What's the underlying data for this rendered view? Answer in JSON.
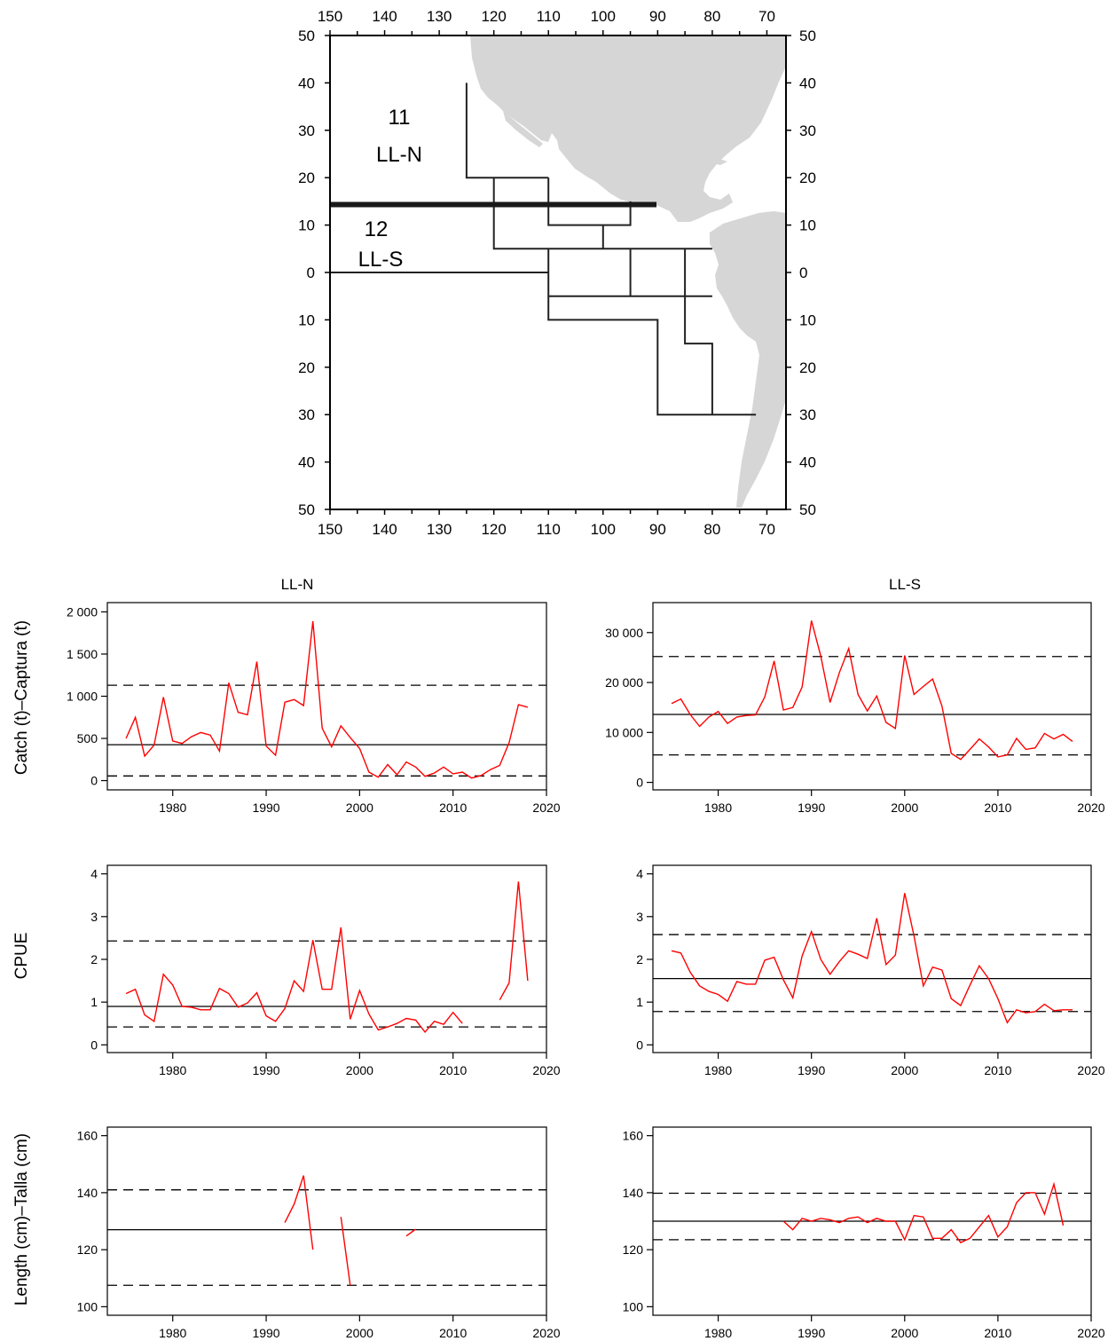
{
  "map": {
    "lon_ticks": [
      150,
      140,
      130,
      120,
      110,
      100,
      90,
      80,
      70
    ],
    "lat_ticks": [
      50,
      40,
      30,
      20,
      10,
      0,
      10,
      20,
      30,
      40,
      50
    ],
    "lon_range": [
      150,
      66.5
    ],
    "lat_range": [
      50,
      -50
    ],
    "land_color": "#d6d6d6",
    "areas": [
      {
        "number": "11",
        "name": "LL-N"
      },
      {
        "number": "12",
        "name": "LL-S"
      }
    ],
    "boundary_lat": 15,
    "grid_lines": [
      [
        [
          125,
          40
        ],
        [
          125,
          20
        ],
        [
          110,
          20
        ]
      ],
      [
        [
          120,
          20
        ],
        [
          120,
          5
        ],
        [
          80,
          5
        ]
      ],
      [
        [
          110,
          20
        ],
        [
          110,
          10
        ],
        [
          95,
          10
        ],
        [
          95,
          15
        ]
      ],
      [
        [
          100,
          10
        ],
        [
          100,
          5
        ]
      ],
      [
        [
          150,
          0
        ],
        [
          110,
          0
        ]
      ],
      [
        [
          110,
          5
        ],
        [
          110,
          -10
        ],
        [
          90,
          -10
        ],
        [
          90,
          -30
        ],
        [
          72,
          -30
        ]
      ],
      [
        [
          110,
          -5
        ],
        [
          80,
          -5
        ]
      ],
      [
        [
          95,
          5
        ],
        [
          95,
          -5
        ]
      ],
      [
        [
          85,
          5
        ],
        [
          85,
          -15
        ],
        [
          80,
          -15
        ],
        [
          80,
          -30
        ]
      ]
    ]
  },
  "panel_titles": {
    "left": "LL-N",
    "right": "LL-S"
  },
  "row_labels": [
    "Catch (t)–Captura (t)",
    "CPUE",
    "Length (cm)–Talla (cm)"
  ],
  "x_ticks": [
    "1980",
    "1990",
    "2000",
    "2010",
    "2020"
  ],
  "colors": {
    "series": "#ff0000",
    "lines": "#000000"
  },
  "chart_data": [
    {
      "type": "line",
      "panel": "LL-N",
      "row": "catch",
      "xlim": [
        1973,
        2020
      ],
      "ylim": [
        -110,
        2110
      ],
      "yticks": [
        0,
        500,
        1000,
        1500,
        2000
      ],
      "ytick_labels": [
        "0",
        "500",
        "1 000",
        "1 500",
        "2 000"
      ],
      "x": [
        1975,
        1976,
        1977,
        1978,
        1979,
        1980,
        1981,
        1982,
        1983,
        1984,
        1985,
        1986,
        1987,
        1988,
        1989,
        1990,
        1991,
        1992,
        1993,
        1994,
        1995,
        1996,
        1997,
        1998,
        1999,
        2000,
        2001,
        2002,
        2003,
        2004,
        2005,
        2006,
        2007,
        2008,
        2009,
        2010,
        2011,
        2012,
        2013,
        2014,
        2015,
        2016,
        2017,
        2018
      ],
      "y": [
        500,
        750,
        290,
        420,
        990,
        470,
        440,
        520,
        570,
        540,
        350,
        1160,
        810,
        780,
        1410,
        410,
        300,
        930,
        960,
        890,
        1890,
        620,
        400,
        650,
        510,
        380,
        100,
        40,
        190,
        70,
        220,
        160,
        50,
        90,
        160,
        80,
        100,
        30,
        60,
        130,
        180,
        450,
        900,
        870
      ],
      "hlines": [
        {
          "value": 425,
          "style": "solid"
        },
        {
          "value": 1130,
          "style": "dashed"
        },
        {
          "value": 55,
          "style": "dashed"
        }
      ]
    },
    {
      "type": "line",
      "panel": "LL-S",
      "row": "catch",
      "xlim": [
        1973,
        2020
      ],
      "ylim": [
        -1500,
        36000
      ],
      "yticks": [
        0,
        10000,
        20000,
        30000
      ],
      "ytick_labels": [
        "0",
        "10 000",
        "20 000",
        "30 000"
      ],
      "x": [
        1975,
        1976,
        1977,
        1978,
        1979,
        1980,
        1981,
        1982,
        1983,
        1984,
        1985,
        1986,
        1987,
        1988,
        1989,
        1990,
        1991,
        1992,
        1993,
        1994,
        1995,
        1996,
        1997,
        1998,
        1999,
        2000,
        2001,
        2002,
        2003,
        2004,
        2005,
        2006,
        2007,
        2008,
        2009,
        2010,
        2011,
        2012,
        2013,
        2014,
        2015,
        2016,
        2017,
        2018
      ],
      "y": [
        15800,
        16700,
        13600,
        11200,
        13100,
        14200,
        11800,
        13100,
        13400,
        13500,
        17100,
        24300,
        14500,
        15000,
        19100,
        32400,
        25300,
        16000,
        22000,
        26800,
        17600,
        14300,
        17300,
        12000,
        10800,
        25400,
        17600,
        19200,
        20700,
        15300,
        5800,
        4600,
        6600,
        8700,
        7100,
        5100,
        5500,
        8800,
        6600,
        6900,
        9800,
        8700,
        9600,
        8200
      ],
      "hlines": [
        {
          "value": 13600,
          "style": "solid"
        },
        {
          "value": 25200,
          "style": "dashed"
        },
        {
          "value": 5500,
          "style": "dashed"
        }
      ]
    },
    {
      "type": "line",
      "panel": "LL-N",
      "row": "cpue",
      "xlim": [
        1973,
        2020
      ],
      "ylim": [
        -0.18,
        4.2
      ],
      "yticks": [
        0,
        1,
        2,
        3,
        4
      ],
      "ytick_labels": [
        "0",
        "1",
        "2",
        "3",
        "4"
      ],
      "segments": [
        {
          "x": [
            1975,
            1976,
            1977,
            1978,
            1979,
            1980,
            1981,
            1982,
            1983,
            1984,
            1985,
            1986,
            1987,
            1988,
            1989,
            1990,
            1991,
            1992,
            1993,
            1994,
            1995,
            1996,
            1997,
            1998,
            1999,
            2000,
            2001,
            2002,
            2003,
            2004,
            2005,
            2006,
            2007,
            2008,
            2009,
            2010,
            2011
          ],
          "y": [
            1.2,
            1.3,
            0.7,
            0.55,
            1.65,
            1.4,
            0.9,
            0.88,
            0.82,
            0.82,
            1.32,
            1.2,
            0.88,
            0.98,
            1.22,
            0.68,
            0.55,
            0.85,
            1.5,
            1.25,
            2.45,
            1.3,
            1.3,
            2.75,
            0.6,
            1.27,
            0.72,
            0.35,
            0.42,
            0.5,
            0.62,
            0.58,
            0.3,
            0.55,
            0.48,
            0.76,
            0.5
          ]
        },
        {
          "x": [
            2015,
            2016,
            2017,
            2018
          ],
          "y": [
            1.05,
            1.45,
            3.82,
            1.5
          ]
        }
      ],
      "hlines": [
        {
          "value": 0.9,
          "style": "solid"
        },
        {
          "value": 2.43,
          "style": "dashed"
        },
        {
          "value": 0.42,
          "style": "dashed"
        }
      ]
    },
    {
      "type": "line",
      "panel": "LL-S",
      "row": "cpue",
      "xlim": [
        1973,
        2020
      ],
      "ylim": [
        -0.18,
        4.2
      ],
      "yticks": [
        0,
        1,
        2,
        3,
        4
      ],
      "ytick_labels": [
        "0",
        "1",
        "2",
        "3",
        "4"
      ],
      "x": [
        1975,
        1976,
        1977,
        1978,
        1979,
        1980,
        1981,
        1982,
        1983,
        1984,
        1985,
        1986,
        1987,
        1988,
        1989,
        1990,
        1991,
        1992,
        1993,
        1994,
        1995,
        1996,
        1997,
        1998,
        1999,
        2000,
        2001,
        2002,
        2003,
        2004,
        2005,
        2006,
        2007,
        2008,
        2009,
        2010,
        2011,
        2012,
        2013,
        2014,
        2015,
        2016,
        2017,
        2018
      ],
      "y": [
        2.2,
        2.15,
        1.7,
        1.38,
        1.25,
        1.18,
        1.02,
        1.48,
        1.42,
        1.42,
        1.98,
        2.05,
        1.52,
        1.1,
        2.08,
        2.65,
        2.0,
        1.65,
        1.95,
        2.2,
        2.12,
        2.02,
        2.96,
        1.88,
        2.1,
        3.55,
        2.55,
        1.38,
        1.82,
        1.75,
        1.08,
        0.92,
        1.4,
        1.85,
        1.55,
        1.08,
        0.52,
        0.82,
        0.75,
        0.78,
        0.95,
        0.8,
        0.82,
        0.82
      ],
      "hlines": [
        {
          "value": 1.55,
          "style": "solid"
        },
        {
          "value": 2.58,
          "style": "dashed"
        },
        {
          "value": 0.78,
          "style": "dashed"
        }
      ]
    },
    {
      "type": "line",
      "panel": "LL-N",
      "row": "length",
      "xlim": [
        1973,
        2020
      ],
      "ylim": [
        97,
        163
      ],
      "yticks": [
        100,
        120,
        140,
        160
      ],
      "ytick_labels": [
        "100",
        "120",
        "140",
        "160"
      ],
      "segments": [
        {
          "x": [
            1992,
            1993,
            1994,
            1995
          ],
          "y": [
            129.5,
            136,
            146,
            120
          ]
        },
        {
          "x": [
            1998,
            1999
          ],
          "y": [
            131.5,
            107.5
          ]
        },
        {
          "x": [
            2005,
            2006
          ],
          "y": [
            124.8,
            127.2
          ]
        }
      ],
      "hlines": [
        {
          "value": 127,
          "style": "solid"
        },
        {
          "value": 141,
          "style": "dashed"
        },
        {
          "value": 107.5,
          "style": "dashed"
        }
      ]
    },
    {
      "type": "line",
      "panel": "LL-S",
      "row": "length",
      "xlim": [
        1973,
        2020
      ],
      "ylim": [
        97,
        163
      ],
      "yticks": [
        100,
        120,
        140,
        160
      ],
      "ytick_labels": [
        "100",
        "120",
        "140",
        "160"
      ],
      "x": [
        1987,
        1988,
        1989,
        1990,
        1991,
        1992,
        1993,
        1994,
        1995,
        1996,
        1997,
        1998,
        1999,
        2000,
        2001,
        2002,
        2003,
        2004,
        2005,
        2006,
        2007,
        2008,
        2009,
        2010,
        2011,
        2012,
        2013,
        2014,
        2015,
        2016,
        2017
      ],
      "y": [
        130,
        127,
        131,
        130,
        131,
        130.5,
        129.5,
        131,
        131.5,
        129.5,
        131,
        130,
        130,
        123.5,
        132,
        131.5,
        124,
        124,
        127,
        122.5,
        124,
        128,
        132,
        124.5,
        128,
        136.5,
        140,
        140,
        132.5,
        143,
        128.5
      ],
      "hlines": [
        {
          "value": 130,
          "style": "solid"
        },
        {
          "value": 139.8,
          "style": "dashed"
        },
        {
          "value": 123.5,
          "style": "dashed"
        }
      ]
    }
  ]
}
